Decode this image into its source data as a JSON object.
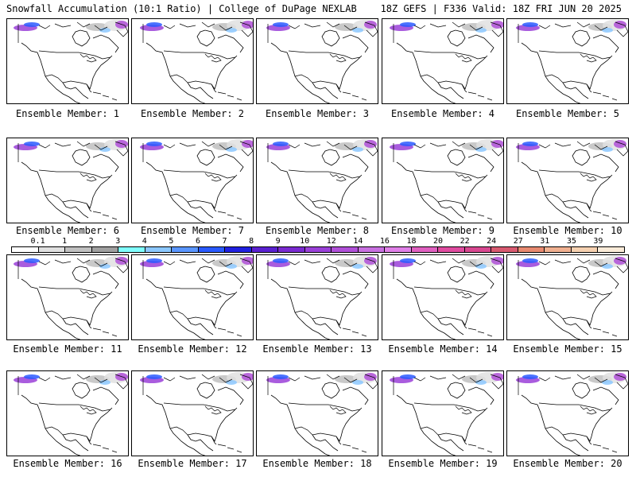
{
  "header": {
    "left": "Snowfall Accumulation (10:1 Ratio) | College of DuPage NEXLAB",
    "right": "18Z GEFS | F336 Valid: 18Z FRI JUN 20 2025"
  },
  "members": [
    "Ensemble Member: 1",
    "Ensemble Member: 2",
    "Ensemble Member: 3",
    "Ensemble Member: 4",
    "Ensemble Member: 5",
    "Ensemble Member: 6",
    "Ensemble Member: 7",
    "Ensemble Member: 8",
    "Ensemble Member: 9",
    "Ensemble Member: 10",
    "Ensemble Member: 11",
    "Ensemble Member: 12",
    "Ensemble Member: 13",
    "Ensemble Member: 14",
    "Ensemble Member: 15",
    "Ensemble Member: 16",
    "Ensemble Member: 17",
    "Ensemble Member: 18",
    "Ensemble Member: 19",
    "Ensemble Member: 20"
  ],
  "colorbar": {
    "ticks": [
      "0.1",
      "1",
      "2",
      "3",
      "4",
      "5",
      "6",
      "7",
      "8",
      "9",
      "10",
      "12",
      "14",
      "16",
      "18",
      "20",
      "22",
      "24",
      "27",
      "31",
      "35",
      "39"
    ],
    "colors": [
      "#ffffff",
      "#e0e0e0",
      "#c0c0c0",
      "#a0a0a0",
      "#80ffff",
      "#8cc8ff",
      "#5a96ff",
      "#2a5aff",
      "#2020e0",
      "#5a20d0",
      "#7a2ad0",
      "#9a40d8",
      "#b050d8",
      "#c870e0",
      "#e080e8",
      "#e060c0",
      "#e04ca0",
      "#d84890",
      "#d85a70",
      "#e88a70",
      "#f0b090",
      "#f5d0b0",
      "#faebd8"
    ]
  }
}
